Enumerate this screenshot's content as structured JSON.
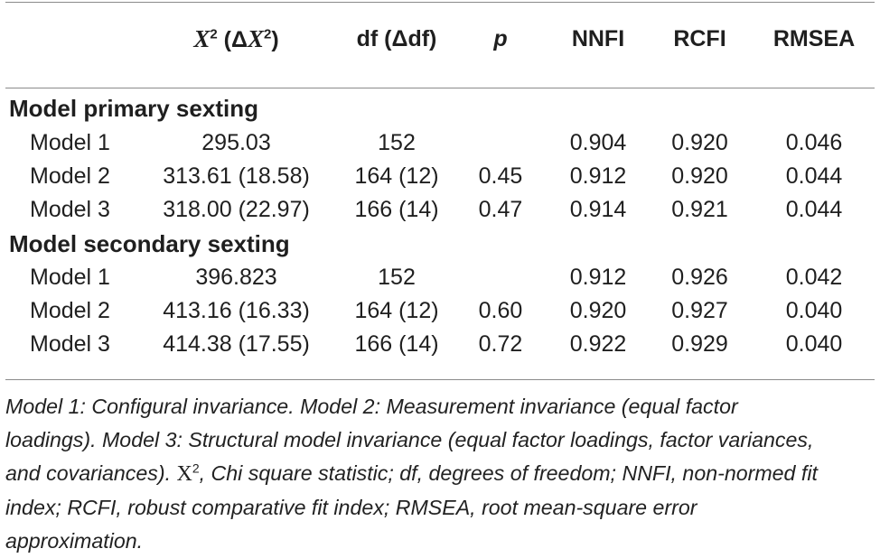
{
  "header": {
    "chi_symbol": "X",
    "chi_sup": "2",
    "chi_delta_open": " (Δ",
    "chi_delta_symbol": "X",
    "chi_delta_sup": "2",
    "chi_delta_close": ")",
    "df": "df (Δdf)",
    "p": "p",
    "nnfi": "NNFI",
    "rcfi": "RCFI",
    "rmsea": "RMSEA"
  },
  "sections": [
    {
      "title": "Model primary sexting",
      "rows": [
        {
          "model": "Model 1",
          "chi": "295.03",
          "df": "152",
          "p": "",
          "nnfi": "0.904",
          "rcfi": "0.920",
          "rmsea": "0.046"
        },
        {
          "model": "Model 2",
          "chi": "313.61 (18.58)",
          "df": "164 (12)",
          "p": "0.45",
          "nnfi": "0.912",
          "rcfi": "0.920",
          "rmsea": "0.044"
        },
        {
          "model": "Model 3",
          "chi": "318.00 (22.97)",
          "df": "166 (14)",
          "p": "0.47",
          "nnfi": "0.914",
          "rcfi": "0.921",
          "rmsea": "0.044"
        }
      ]
    },
    {
      "title": "Model secondary sexting",
      "rows": [
        {
          "model": "Model 1",
          "chi": "396.823",
          "df": "152",
          "p": "",
          "nnfi": "0.912",
          "rcfi": "0.926",
          "rmsea": "0.042"
        },
        {
          "model": "Model 2",
          "chi": "413.16 (16.33)",
          "df": "164 (12)",
          "p": "0.60",
          "nnfi": "0.920",
          "rcfi": "0.927",
          "rmsea": "0.040"
        },
        {
          "model": "Model 3",
          "chi": "414.38 (17.55)",
          "df": "166 (14)",
          "p": "0.72",
          "nnfi": "0.922",
          "rcfi": "0.929",
          "rmsea": "0.040"
        }
      ]
    }
  ],
  "footnote": {
    "line1": "Model 1: Configural invariance. Model 2: Measurement invariance (equal factor",
    "line2": "loadings). Model 3: Structural model invariance (equal factor loadings, factor variances,",
    "line3_pre": "and covariances). ",
    "line3_x": "X",
    "line3_sup": "2",
    "line3_post": ", Chi square statistic; df, degrees of freedom; NNFI, non-normed fit",
    "line4": "index; RCFI, robust comparative fit index; RMSEA, root mean-square error",
    "line5": "approximation."
  }
}
